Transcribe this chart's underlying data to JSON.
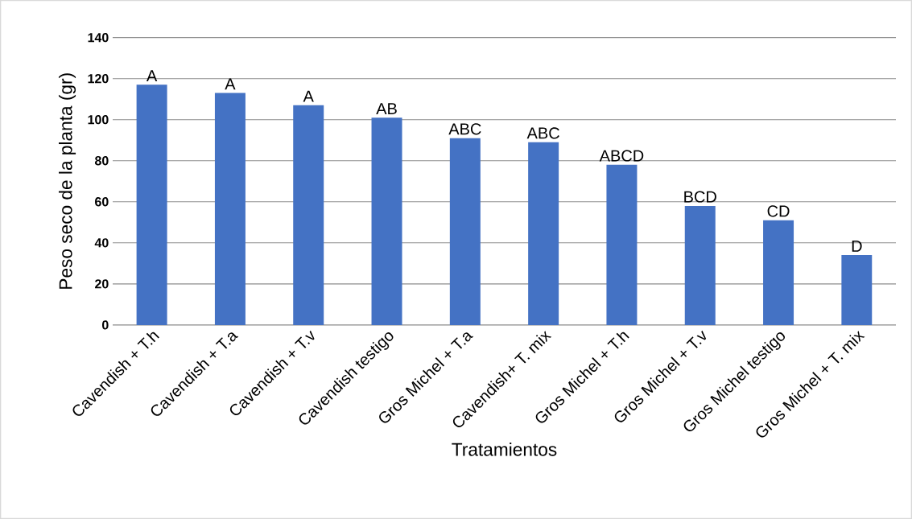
{
  "chart_data": {
    "type": "bar",
    "xlabel": "Tratamientos",
    "ylabel": "Peso seco de la planta (gr)",
    "categories": [
      "Cavendish + T.h",
      "Cavendish + T.a",
      "Cavendish + T.v",
      "Cavendish testigo",
      "Gros Michel + T.a",
      "Cavendish+ T. mix",
      "Gros Michel + T.h",
      "Gros Michel + T.v",
      "Gros Michel testigo",
      "Gros Michel + T. mix"
    ],
    "values": [
      117,
      113,
      107,
      101,
      91,
      89,
      78,
      58,
      51,
      34
    ],
    "color": "#4472c4",
    "ylim": [
      0,
      140
    ],
    "yticks": [
      0,
      20,
      40,
      60,
      80,
      100,
      120,
      140
    ],
    "grid": "y",
    "annotations": [
      {
        "text": "A",
        "x": "Cavendish + T.h",
        "y": 117
      },
      {
        "text": "A",
        "x": "Cavendish + T.a",
        "y": 113
      },
      {
        "text": "A",
        "x": "Cavendish + T.v",
        "y": 107
      },
      {
        "text": "AB",
        "x": "Cavendish testigo",
        "y": 101
      },
      {
        "text": "ABC",
        "x": "Gros Michel + T.a",
        "y": 91
      },
      {
        "text": "ABC",
        "x": "Cavendish+ T. mix",
        "y": 89
      },
      {
        "text": "ABCD",
        "x": "Gros Michel + T.h",
        "y": 78
      },
      {
        "text": "BCD",
        "x": "Gros Michel + T.v",
        "y": 58
      },
      {
        "text": "CD",
        "x": "Gros Michel testigo",
        "y": 51
      },
      {
        "text": "D",
        "x": "Gros Michel + T. mix",
        "y": 34
      }
    ]
  }
}
